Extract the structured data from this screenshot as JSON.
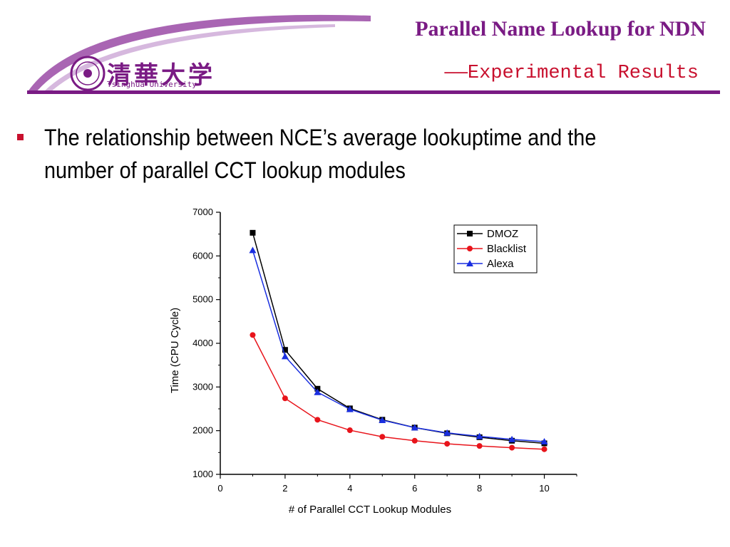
{
  "slide": {
    "title": "Parallel Name Lookup for NDN",
    "subtitle": "——Experimental Results",
    "logo_text": "清華大学",
    "logo_english": "Tsinghua University",
    "bullet": "The relationship between NCE’s average lookuptime and the number of parallel CCT lookup modules"
  },
  "colors": {
    "brand": "#7a1b84",
    "accent": "#c8102e",
    "series": [
      "#000000",
      "#e8141b",
      "#1a2fe0"
    ]
  },
  "chart_data": {
    "type": "line",
    "title": "",
    "xlabel": "# of Parallel CCT Lookup Modules",
    "ylabel": "Time (CPU Cycle)",
    "xlim": [
      0,
      11
    ],
    "ylim": [
      1000,
      7000
    ],
    "xticks": [
      "0",
      "2",
      "4",
      "6",
      "8",
      "10"
    ],
    "yticks": [
      "1000",
      "2000",
      "3000",
      "4000",
      "5000",
      "6000",
      "7000"
    ],
    "legend_position": "top-right",
    "grid": false,
    "x": [
      1,
      2,
      3,
      4,
      5,
      6,
      7,
      8,
      9,
      10
    ],
    "series": [
      {
        "name": "DMOZ",
        "marker": "square",
        "values": [
          6530,
          3850,
          2960,
          2510,
          2250,
          2070,
          1940,
          1850,
          1770,
          1710
        ]
      },
      {
        "name": "Blacklist",
        "marker": "circle",
        "values": [
          4190,
          2740,
          2250,
          2010,
          1860,
          1770,
          1700,
          1650,
          1610,
          1575
        ]
      },
      {
        "name": "Alexa",
        "marker": "triangle",
        "values": [
          6130,
          3700,
          2880,
          2490,
          2240,
          2070,
          1950,
          1870,
          1800,
          1750
        ]
      }
    ]
  }
}
